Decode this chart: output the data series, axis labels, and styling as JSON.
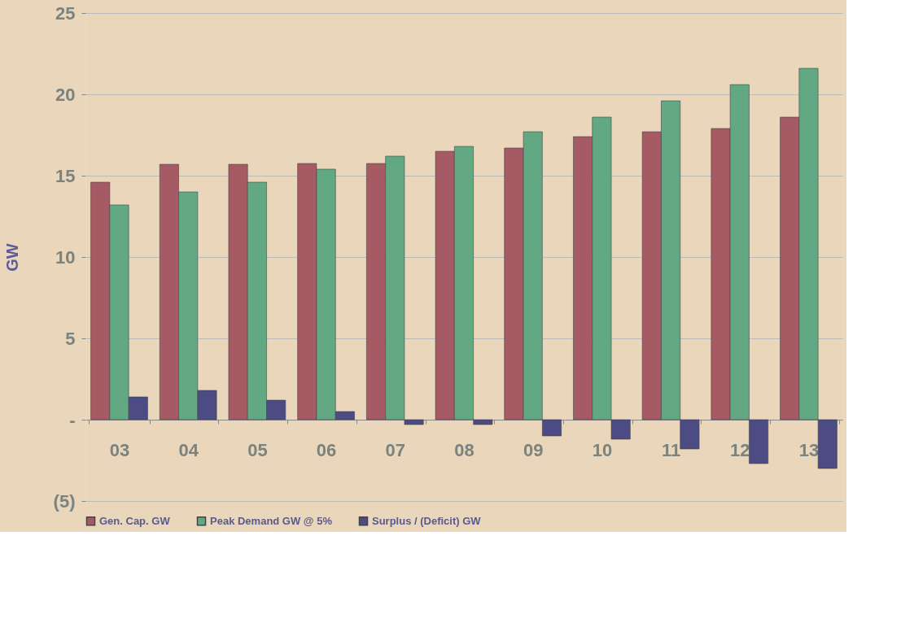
{
  "chart_data": {
    "type": "bar",
    "ylabel": "GW",
    "categories": [
      "03",
      "04",
      "05",
      "06",
      "07",
      "08",
      "09",
      "10",
      "11",
      "12",
      "13"
    ],
    "series": [
      {
        "name": "Gen. Cap. GW",
        "color": "#a65a64",
        "values": [
          14.6,
          15.7,
          15.7,
          15.75,
          15.75,
          16.5,
          16.7,
          17.4,
          17.7,
          17.9,
          18.6
        ]
      },
      {
        "name": "Peak Demand GW @ 5%",
        "color": "#62a983",
        "values": [
          13.2,
          14.0,
          14.6,
          15.4,
          16.2,
          16.8,
          17.7,
          18.6,
          19.6,
          20.6,
          21.6
        ]
      },
      {
        "name": "Surplus / (Deficit) GW",
        "color": "#4c4b84",
        "values": [
          1.4,
          1.8,
          1.2,
          0.5,
          -0.3,
          -0.3,
          -1.0,
          -1.2,
          -1.8,
          -2.7,
          -3.0
        ]
      }
    ],
    "ylim": [
      -5,
      25
    ],
    "yticks": [
      {
        "value": -5,
        "label": "(5)"
      },
      {
        "value": 0,
        "label": "-"
      },
      5,
      10,
      15,
      20,
      25
    ],
    "grid": "y",
    "legend": "bottom"
  }
}
